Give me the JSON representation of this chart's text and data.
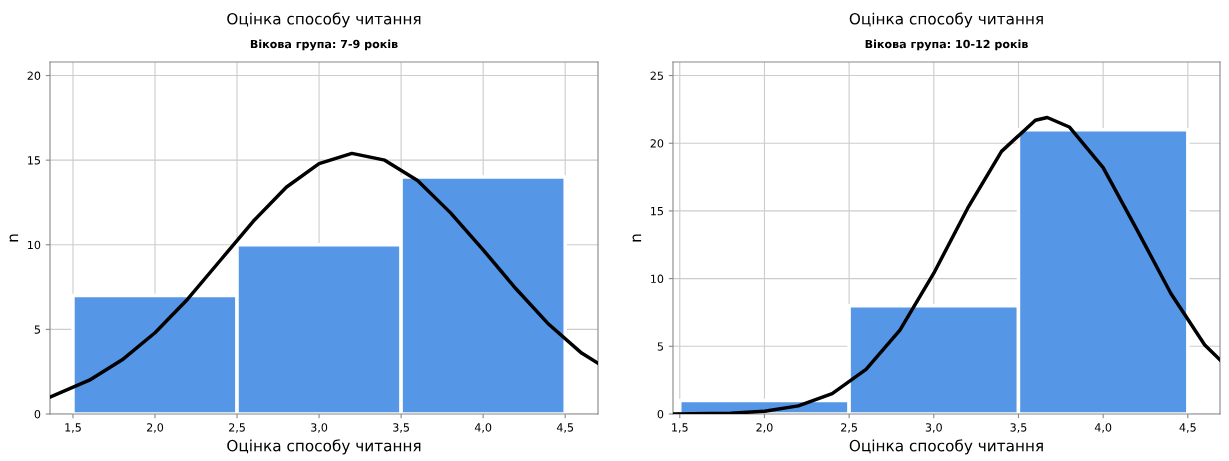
{
  "chart_data": [
    {
      "type": "histogram",
      "title": "Оцінка способу читання",
      "subtitle": "Вікова група: 7-9 років",
      "xlabel": "Оцінка способу читання",
      "ylabel": "n",
      "bins": [
        1.5,
        2.5,
        3.5,
        4.5
      ],
      "grid": true,
      "xlim": [
        1.36,
        4.7
      ],
      "xticks": [
        {
          "value": 1.5,
          "label": "1,5"
        },
        {
          "value": 2.0,
          "label": "2,0"
        },
        {
          "value": 2.5,
          "label": "2,5"
        },
        {
          "value": 3.0,
          "label": "3,0"
        },
        {
          "value": 3.5,
          "label": "3,5"
        },
        {
          "value": 4.0,
          "label": "4,0"
        },
        {
          "value": 4.5,
          "label": "4,5"
        }
      ],
      "ylim": [
        0,
        20.8
      ],
      "yticks": [
        0,
        5,
        10,
        15,
        20
      ],
      "series": [
        {
          "color": "#5596e6",
          "values": [
            7,
            10,
            14
          ]
        },
        {
          "type": "line",
          "color": "#000000",
          "x": [
            1.36,
            1.6,
            1.8,
            2.0,
            2.2,
            2.4,
            2.6,
            2.8,
            3.0,
            3.2,
            3.4,
            3.6,
            3.8,
            4.0,
            4.2,
            4.4,
            4.6,
            4.7
          ],
          "values": [
            1.0,
            2.0,
            3.2,
            4.8,
            6.8,
            9.1,
            11.4,
            13.4,
            14.8,
            15.4,
            15.0,
            13.8,
            11.9,
            9.7,
            7.4,
            5.3,
            3.6,
            3.0
          ]
        }
      ]
    },
    {
      "type": "histogram",
      "title": "Оцінка способу читання",
      "subtitle": "Вікова група: 10-12 років",
      "xlabel": "Оцінка способу читання",
      "ylabel": "n",
      "bins": [
        1.5,
        2.5,
        3.5,
        4.5
      ],
      "grid": true,
      "xlim": [
        1.46,
        4.69
      ],
      "xticks": [
        {
          "value": 1.5,
          "label": "1,5"
        },
        {
          "value": 2.0,
          "label": "2,0"
        },
        {
          "value": 2.5,
          "label": "2,5"
        },
        {
          "value": 3.0,
          "label": "3,0"
        },
        {
          "value": 3.5,
          "label": "3,5"
        },
        {
          "value": 4.0,
          "label": "4,0"
        },
        {
          "value": 4.5,
          "label": "4,5"
        }
      ],
      "ylim": [
        0,
        26
      ],
      "yticks": [
        0,
        5,
        10,
        15,
        20,
        25
      ],
      "series": [
        {
          "color": "#5596e6",
          "values": [
            1,
            8,
            21
          ]
        },
        {
          "type": "line",
          "color": "#000000",
          "x": [
            1.46,
            1.8,
            2.0,
            2.2,
            2.4,
            2.6,
            2.8,
            3.0,
            3.2,
            3.4,
            3.6,
            3.67,
            3.8,
            4.0,
            4.2,
            4.4,
            4.6,
            4.69
          ],
          "values": [
            0.0,
            0.06,
            0.2,
            0.6,
            1.5,
            3.3,
            6.2,
            10.4,
            15.2,
            19.4,
            21.7,
            21.9,
            21.2,
            18.2,
            13.6,
            8.9,
            5.1,
            4.0
          ]
        }
      ]
    }
  ]
}
